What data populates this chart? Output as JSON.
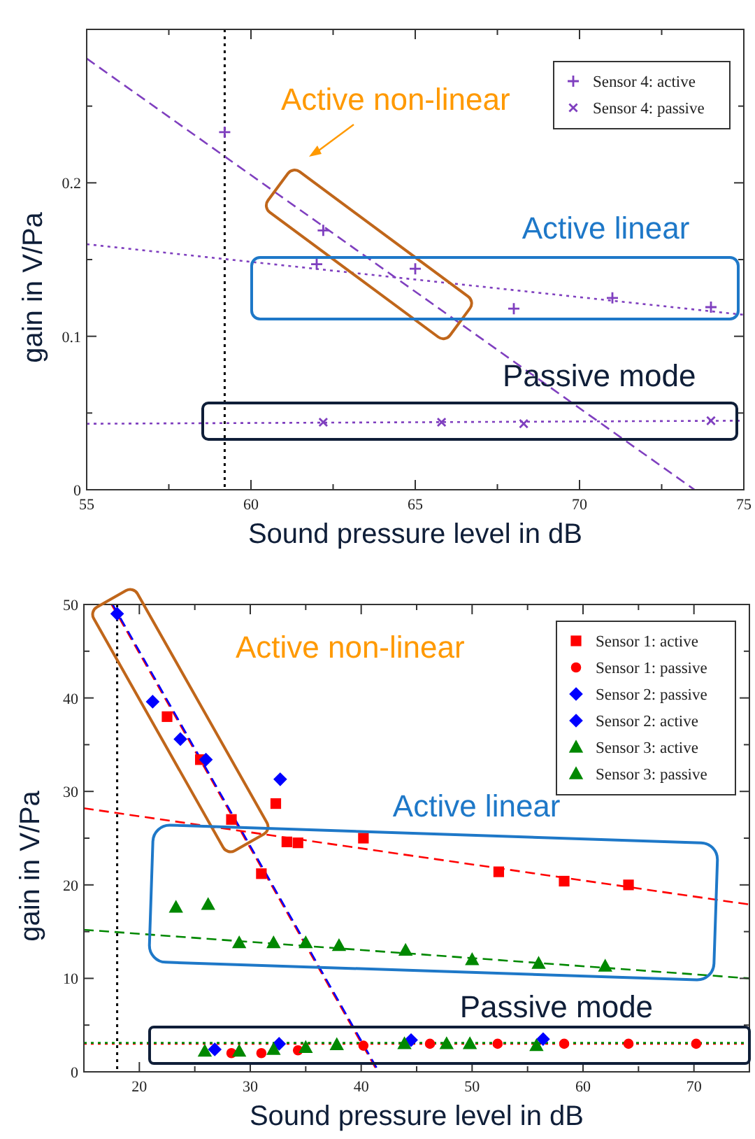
{
  "chart_data": [
    {
      "type": "scatter",
      "xlabel": "Sound pressure level in dB",
      "ylabel": "gain in V/Pa",
      "xlim": [
        55,
        75
      ],
      "ylim": [
        0,
        0.3
      ],
      "xticks": [
        55,
        {
          "value": 57.5,
          "label": null
        },
        60,
        {
          "value": 62.5,
          "label": null
        },
        65,
        {
          "value": 67.5,
          "label": null
        },
        70,
        {
          "value": 72.5,
          "label": null
        },
        75
      ],
      "yticks": [
        0,
        {
          "value": 0.05,
          "label": null
        },
        0.1,
        {
          "value": 0.15,
          "label": null
        },
        0.2,
        {
          "value": 0.25,
          "label": null
        }
      ],
      "legend": "top right",
      "grid": false,
      "series": [
        {
          "name": "Sensor 4: active",
          "marker": "cross",
          "color": "#7f3fbf",
          "x": [
            59.2,
            62.2,
            62.0,
            65.0,
            68.0,
            71.0,
            74.0
          ],
          "values": [
            0.233,
            0.169,
            0.147,
            0.144,
            0.118,
            0.125,
            0.119
          ]
        },
        {
          "name": "Sensor 4: passive",
          "marker": "x",
          "color": "#7f3fbf",
          "x": [
            62.2,
            65.8,
            68.3,
            74.0
          ],
          "values": [
            0.044,
            0.044,
            0.043,
            0.045
          ]
        },
        {
          "type": "line",
          "marker": "none",
          "line_style": "dashed",
          "color": "#7f3fbf",
          "x": [
            55,
            73.5
          ],
          "values": [
            0.281,
            0
          ]
        },
        {
          "type": "line",
          "marker": "none",
          "line_style": "dotted",
          "color": "#7f3fbf",
          "x": [
            55,
            75
          ],
          "values": [
            0.16,
            0.114
          ]
        },
        {
          "type": "line",
          "marker": "none",
          "line_style": "dotted",
          "color": "#7f3fbf",
          "x": [
            55,
            75
          ],
          "values": [
            0.043,
            0.045
          ]
        }
      ],
      "ref_lines": [
        {
          "axis": "x",
          "value": 59.2,
          "color": "#000000",
          "line_style": "dotted"
        }
      ],
      "annotations": [
        "Active non-linear",
        "Active linear",
        "Passive mode"
      ]
    },
    {
      "type": "scatter",
      "xlabel": "Sound pressure level in dB",
      "ylabel": "gain in V/Pa",
      "xlim": [
        15,
        75
      ],
      "ylim": [
        0,
        50
      ],
      "xticks": [
        {
          "value": 15,
          "label": null
        },
        20,
        {
          "value": 25,
          "label": null
        },
        30,
        {
          "value": 35,
          "label": null
        },
        40,
        {
          "value": 45,
          "label": null
        },
        50,
        {
          "value": 55,
          "label": null
        },
        60,
        {
          "value": 65,
          "label": null
        },
        70,
        {
          "value": 75,
          "label": null
        }
      ],
      "yticks": [
        0,
        {
          "value": 5,
          "label": null
        },
        10,
        {
          "value": 15,
          "label": null
        },
        20,
        {
          "value": 25,
          "label": null
        },
        30,
        {
          "value": 35,
          "label": null
        },
        40,
        {
          "value": 45,
          "label": null
        },
        50
      ],
      "legend": "top right",
      "grid": false,
      "series": [
        {
          "name": "Sensor 1: active",
          "marker": "square",
          "color": "#ff0000",
          "x": [
            22.5,
            25.5,
            28.3,
            31.0,
            32.3,
            33.3,
            34.3,
            40.2,
            52.4,
            58.3,
            64.1
          ],
          "values": [
            38.0,
            33.4,
            27.0,
            21.2,
            28.7,
            24.6,
            24.5,
            25.0,
            21.4,
            20.4,
            20.0
          ]
        },
        {
          "name": "Sensor 1: passive",
          "marker": "circle",
          "color": "#ff0000",
          "x": [
            28.3,
            31.0,
            34.3,
            40.2,
            46.2,
            52.3,
            58.3,
            64.1,
            70.2
          ],
          "values": [
            2.0,
            2.0,
            2.3,
            2.8,
            3.0,
            3.0,
            3.0,
            3.0,
            3.0
          ]
        },
        {
          "name": "Sensor 2: passive",
          "marker": "diamond",
          "color": "#0000ff",
          "x": [
            26.8,
            32.6,
            44.5,
            56.4
          ],
          "values": [
            2.4,
            3.0,
            3.4,
            3.5
          ]
        },
        {
          "name": "Sensor 2: active",
          "marker": "diamond",
          "color": "#0000ff",
          "x": [
            18.0,
            21.2,
            23.7,
            26.0,
            32.7
          ],
          "values": [
            49.0,
            39.6,
            35.6,
            33.4,
            31.3
          ]
        },
        {
          "name": "Sensor 3: active",
          "marker": "triangle",
          "color": "#008800",
          "x": [
            23.3,
            26.2,
            29.0,
            32.1,
            35.0,
            38.0,
            44.0,
            50.0,
            56.0,
            62.0
          ],
          "values": [
            17.6,
            17.9,
            13.8,
            13.8,
            13.8,
            13.5,
            13.0,
            12.0,
            11.6,
            11.3
          ]
        },
        {
          "name": "Sensor 3: passive",
          "marker": "triangle",
          "color": "#008800",
          "x": [
            25.9,
            29.0,
            32.1,
            35.0,
            37.8,
            43.9,
            47.7,
            49.8,
            55.8
          ],
          "values": [
            2.2,
            2.2,
            2.4,
            2.6,
            2.9,
            3.0,
            3.0,
            3.0,
            2.8
          ]
        },
        {
          "type": "line",
          "marker": "none",
          "line_style": "dashed",
          "color": "#ff0000",
          "x": [
            17.5,
            41.5
          ],
          "values": [
            50,
            0
          ]
        },
        {
          "type": "line",
          "marker": "none",
          "line_style": "dashed",
          "color": "#0000ff",
          "x": [
            17.6,
            41.6
          ],
          "values": [
            50,
            0
          ]
        },
        {
          "type": "line",
          "marker": "none",
          "line_style": "dashed",
          "color": "#ff0000",
          "x": [
            15,
            75
          ],
          "values": [
            28.2,
            17.9
          ]
        },
        {
          "type": "line",
          "marker": "none",
          "line_style": "dashed",
          "color": "#008800",
          "x": [
            15,
            75
          ],
          "values": [
            15.2,
            10.0
          ]
        },
        {
          "type": "line",
          "marker": "none",
          "line_style": "dotted",
          "color": "#ff0000",
          "x": [
            15,
            75
          ],
          "values": [
            3.0,
            3.0
          ]
        },
        {
          "type": "line",
          "marker": "none",
          "line_style": "dotted",
          "color": "#008800",
          "x": [
            15,
            75
          ],
          "values": [
            3.1,
            3.1
          ]
        }
      ],
      "ref_lines": [
        {
          "axis": "x",
          "value": 18,
          "color": "#000000",
          "line_style": "dotted"
        }
      ],
      "annotations": [
        "Active non-linear",
        "Active linear",
        "Passive mode"
      ]
    }
  ]
}
